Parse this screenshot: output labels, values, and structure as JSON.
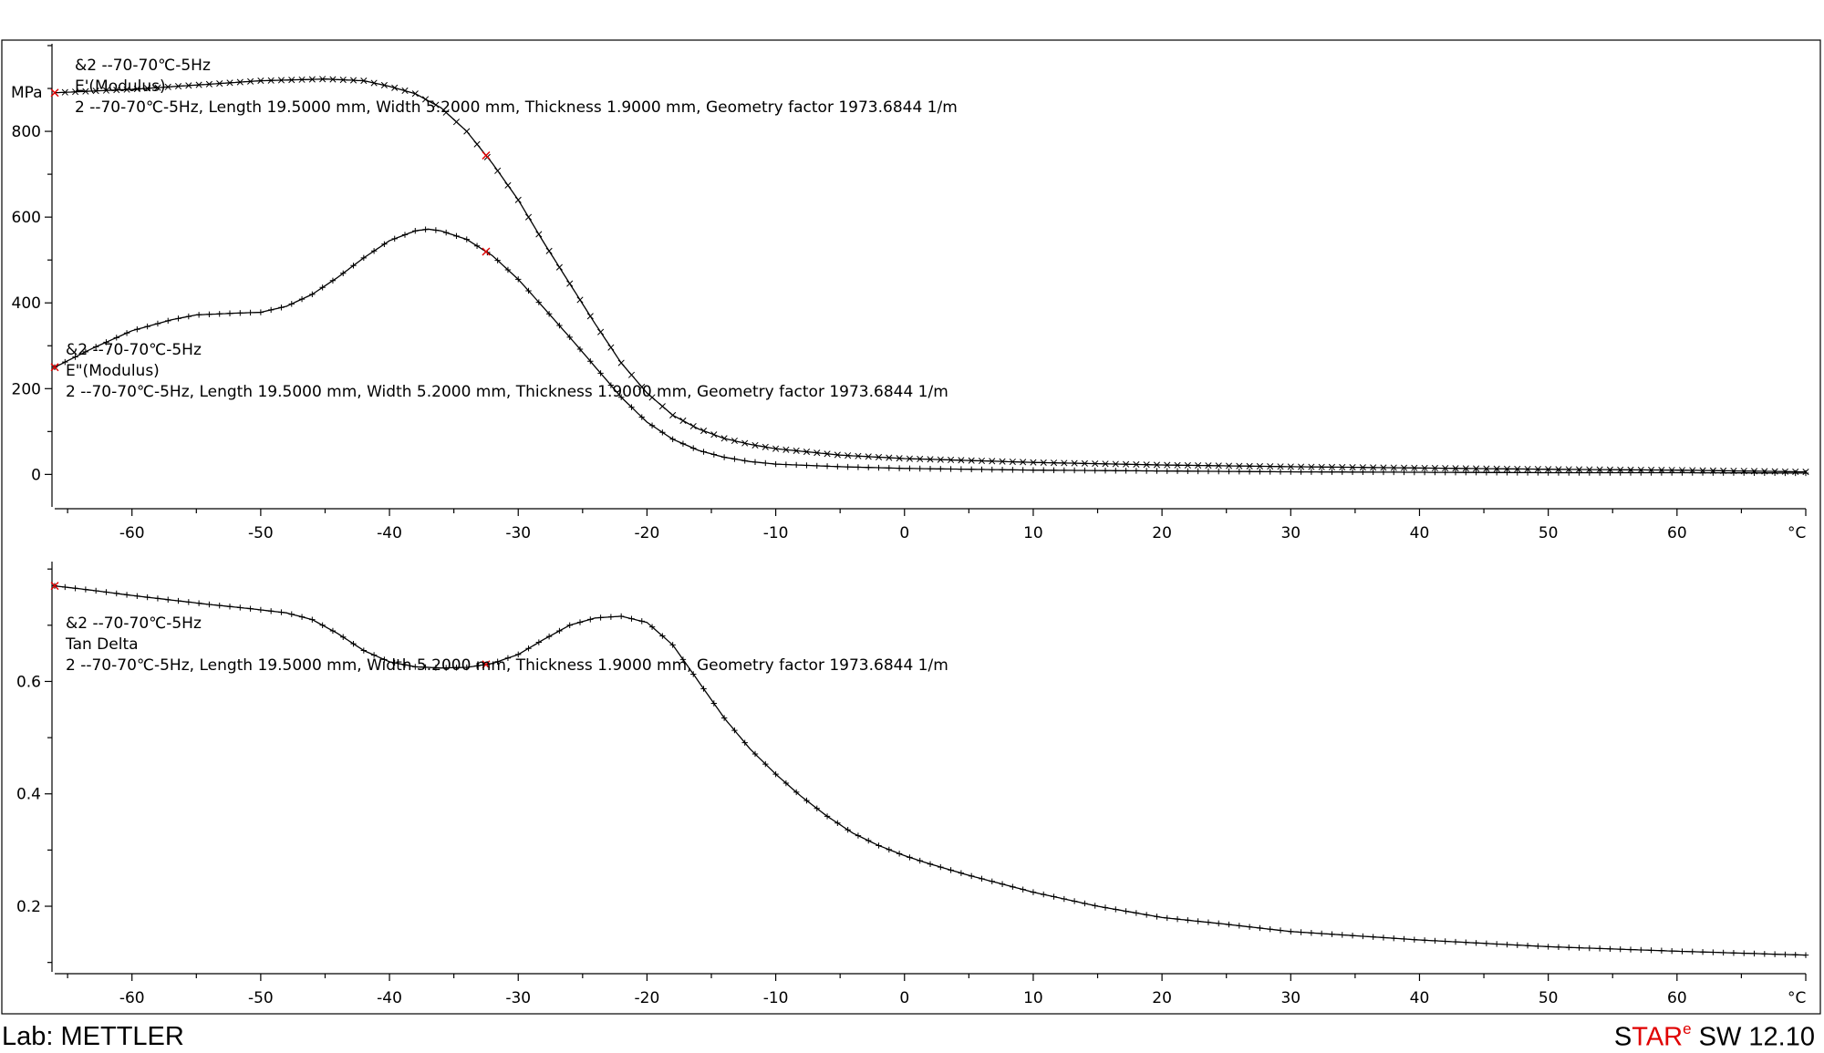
{
  "chart_data": [
    {
      "type": "line",
      "y_unit": "MPa",
      "x_unit": "°C",
      "xlim": [
        -66,
        70
      ],
      "ylim": [
        -80,
        1000
      ],
      "x_ticks": [
        -60,
        -50,
        -40,
        -30,
        -20,
        -10,
        0,
        10,
        20,
        30,
        40,
        50,
        60
      ],
      "y_ticks": [
        0,
        200,
        400,
        600,
        800
      ],
      "grid": false,
      "series": [
        {
          "name": "E'(Modulus)",
          "marker": "x",
          "label_lines": [
            "&2   --70-70℃-5Hz",
            "E'(Modulus)",
            "2    --70-70℃-5Hz, Length 19.5000 mm, Width 5.2000 mm, Thickness 1.9000 mm, Geometry factor 1973.6844 1/m"
          ],
          "x": [
            -66,
            -60,
            -55,
            -50,
            -45,
            -42,
            -40,
            -38,
            -36,
            -34,
            -32,
            -30,
            -28,
            -26,
            -24,
            -22,
            -20,
            -18,
            -16,
            -14,
            -12,
            -10,
            -5,
            0,
            10,
            20,
            30,
            40,
            50,
            60,
            70
          ],
          "values": [
            890,
            898,
            908,
            918,
            922,
            918,
            905,
            888,
            855,
            800,
            725,
            640,
            540,
            445,
            350,
            260,
            190,
            138,
            106,
            84,
            70,
            60,
            45,
            37,
            28,
            22,
            18,
            15,
            12,
            10,
            6
          ]
        },
        {
          "name": "E\"(Modulus)",
          "marker": "+",
          "label_lines": [
            "&2   --70-70℃-5Hz",
            "E\"(Modulus)",
            "2    --70-70℃-5Hz, Length 19.5000 mm, Width 5.2000 mm, Thickness 1.9000 mm, Geometry factor 1973.6844 1/m"
          ],
          "x": [
            -66,
            -63,
            -60,
            -57,
            -55,
            -52,
            -50,
            -48,
            -46,
            -44,
            -42,
            -40,
            -38,
            -37,
            -36,
            -34,
            -32,
            -30,
            -28,
            -26,
            -24,
            -22,
            -20,
            -18,
            -16,
            -14,
            -12,
            -10,
            -5,
            0,
            10,
            20,
            30,
            40,
            50,
            60,
            70
          ],
          "values": [
            250,
            295,
            335,
            360,
            372,
            376,
            378,
            392,
            420,
            460,
            505,
            545,
            568,
            572,
            568,
            548,
            510,
            455,
            388,
            320,
            250,
            180,
            122,
            82,
            56,
            40,
            30,
            24,
            18,
            14,
            10,
            8,
            6,
            5,
            4,
            4,
            3
          ]
        }
      ]
    },
    {
      "type": "line",
      "x_unit": "°C",
      "xlim": [
        -66,
        70
      ],
      "ylim": [
        0.08,
        0.81
      ],
      "x_ticks": [
        -60,
        -50,
        -40,
        -30,
        -20,
        -10,
        0,
        10,
        20,
        30,
        40,
        50,
        60
      ],
      "y_ticks": [
        0.2,
        0.4,
        0.6
      ],
      "grid": false,
      "series": [
        {
          "name": "Tan Delta",
          "marker": "+",
          "label_lines": [
            "&2   --70-70℃-5Hz",
            "Tan Delta",
            "2    --70-70℃-5Hz, Length 19.5000 mm, Width 5.2000 mm, Thickness 1.9000 mm, Geometry factor 1973.6844 1/m"
          ],
          "x": [
            -66,
            -63,
            -60,
            -57,
            -54,
            -51,
            -48,
            -46,
            -44,
            -42,
            -40,
            -38,
            -36,
            -34,
            -32,
            -30,
            -28,
            -26,
            -24,
            -22,
            -20,
            -18,
            -16,
            -14,
            -12,
            -10,
            -8,
            -6,
            -4,
            -2,
            0,
            2,
            5,
            10,
            15,
            20,
            25,
            30,
            40,
            50,
            60,
            70
          ],
          "values": [
            0.77,
            0.762,
            0.753,
            0.745,
            0.737,
            0.73,
            0.722,
            0.71,
            0.685,
            0.655,
            0.635,
            0.626,
            0.624,
            0.625,
            0.632,
            0.648,
            0.675,
            0.7,
            0.713,
            0.716,
            0.705,
            0.665,
            0.6,
            0.535,
            0.48,
            0.435,
            0.395,
            0.36,
            0.33,
            0.308,
            0.29,
            0.275,
            0.255,
            0.225,
            0.2,
            0.18,
            0.168,
            0.155,
            0.14,
            0.128,
            0.12,
            0.113
          ]
        }
      ]
    }
  ],
  "footer": {
    "lab": "Lab: METTLER",
    "sw_s": "S",
    "sw_tar": "TAR",
    "sw_e": "e",
    "sw_rest": " SW 12.10"
  }
}
